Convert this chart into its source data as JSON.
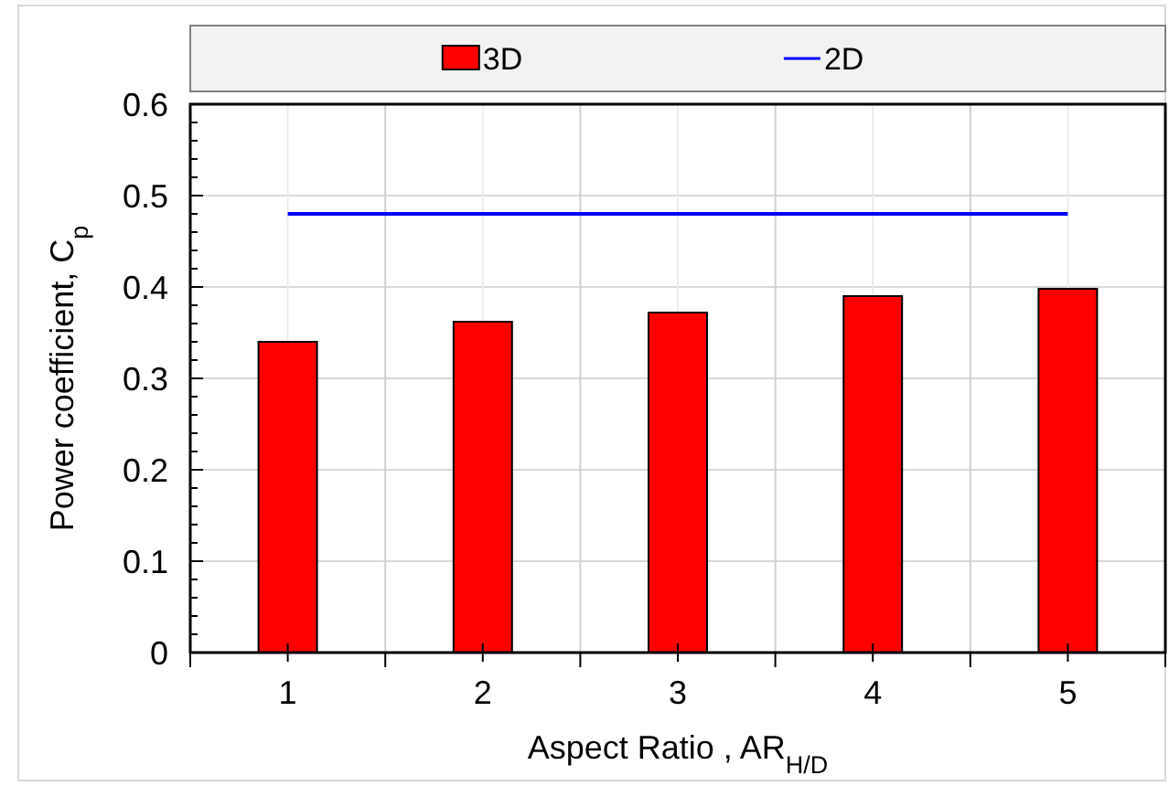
{
  "chart_data": {
    "type": "bar",
    "xlabel": "Aspect Ratio , AR$_{H/D}$",
    "ylabel": "Power coefficient, C$_{p}$",
    "categories": [
      "1",
      "2",
      "3",
      "4",
      "5"
    ],
    "series": [
      {
        "name": "3D",
        "color": "#ff0000",
        "values": [
          0.34,
          0.362,
          0.372,
          0.39,
          0.398
        ]
      },
      {
        "name": "2D",
        "type": "line",
        "color": "#0000ff",
        "values": [
          0.48,
          0.48,
          0.48,
          0.48,
          0.48
        ]
      }
    ],
    "ylim": [
      0,
      0.6
    ],
    "yticks": [
      {
        "value": 0,
        "label": "0"
      },
      0.1,
      0.2,
      0.3,
      0.4,
      0.5,
      0.6
    ],
    "grid": true,
    "legend": "top",
    "marker": "none",
    "line_style": "solid"
  }
}
